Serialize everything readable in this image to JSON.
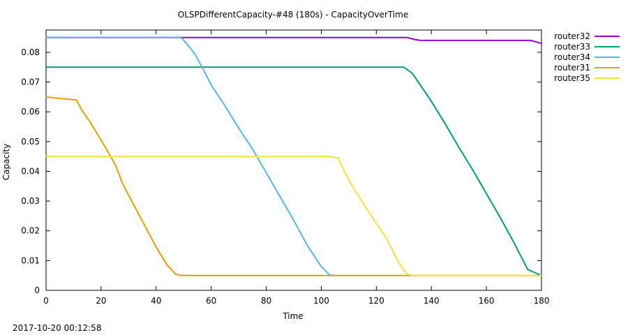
{
  "timestamp": "2017-10-20 00:12:58",
  "chart_data": {
    "type": "line",
    "title": "OLSPDifferentCapacity-#48 (180s) - CapacityOverTime",
    "xlabel": "Time",
    "ylabel": "Capacity",
    "xlim": [
      0,
      180
    ],
    "ylim": [
      0,
      0.0875
    ],
    "xticks": [
      0,
      20,
      40,
      60,
      80,
      100,
      120,
      140,
      160,
      180
    ],
    "yticks": [
      0,
      0.01,
      0.02,
      0.03,
      0.04,
      0.05,
      0.06,
      0.07,
      0.08
    ],
    "xtick_labels": [
      "0",
      "20",
      "40",
      "60",
      "80",
      "100",
      "120",
      "140",
      "160",
      "180"
    ],
    "ytick_labels": [
      "0",
      "0.01",
      "0.02",
      "0.03",
      "0.04",
      "0.05",
      "0.06",
      "0.07",
      "0.08"
    ],
    "grid": false,
    "legend_position": "outside-right-top",
    "series": [
      {
        "name": "router32",
        "color": "#9400d3",
        "points": [
          [
            0,
            0.085
          ],
          [
            48,
            0.085
          ],
          [
            131,
            0.085
          ],
          [
            134,
            0.0843
          ],
          [
            136,
            0.084
          ],
          [
            176,
            0.084
          ],
          [
            180,
            0.083
          ]
        ]
      },
      {
        "name": "router33",
        "color": "#009e73",
        "points": [
          [
            0,
            0.075
          ],
          [
            130,
            0.075
          ],
          [
            133,
            0.073
          ],
          [
            136,
            0.069
          ],
          [
            140,
            0.0635
          ],
          [
            145,
            0.056
          ],
          [
            150,
            0.048
          ],
          [
            155,
            0.0405
          ],
          [
            160,
            0.0325
          ],
          [
            165,
            0.0245
          ],
          [
            170,
            0.016
          ],
          [
            175,
            0.007
          ],
          [
            180,
            0.005
          ]
        ]
      },
      {
        "name": "router34",
        "color": "#56b4e9",
        "points": [
          [
            0,
            0.085
          ],
          [
            49,
            0.085
          ],
          [
            51,
            0.083
          ],
          [
            54,
            0.0795
          ],
          [
            57,
            0.0745
          ],
          [
            60,
            0.069
          ],
          [
            65,
            0.062
          ],
          [
            70,
            0.0545
          ],
          [
            75,
            0.0475
          ],
          [
            80,
            0.0395
          ],
          [
            85,
            0.0315
          ],
          [
            90,
            0.0235
          ],
          [
            95,
            0.015
          ],
          [
            100,
            0.008
          ],
          [
            103,
            0.0052
          ],
          [
            105,
            0.005
          ]
        ]
      },
      {
        "name": "router31",
        "color": "#e69f00",
        "points": [
          [
            0,
            0.065
          ],
          [
            5,
            0.0645
          ],
          [
            11,
            0.064
          ],
          [
            13,
            0.0605
          ],
          [
            16,
            0.0565
          ],
          [
            20,
            0.0505
          ],
          [
            25,
            0.0425
          ],
          [
            28,
            0.0355
          ],
          [
            32,
            0.0285
          ],
          [
            36,
            0.0215
          ],
          [
            40,
            0.0145
          ],
          [
            44,
            0.0085
          ],
          [
            47,
            0.0055
          ],
          [
            49,
            0.005
          ],
          [
            180,
            0.005
          ]
        ]
      },
      {
        "name": "router35",
        "color": "#f0e442",
        "points": [
          [
            0,
            0.045
          ],
          [
            103,
            0.045
          ],
          [
            106,
            0.0445
          ],
          [
            110,
            0.037
          ],
          [
            115,
            0.0295
          ],
          [
            120,
            0.0225
          ],
          [
            124,
            0.017
          ],
          [
            128,
            0.0095
          ],
          [
            131,
            0.0055
          ],
          [
            133,
            0.005
          ],
          [
            180,
            0.005
          ]
        ]
      }
    ]
  }
}
